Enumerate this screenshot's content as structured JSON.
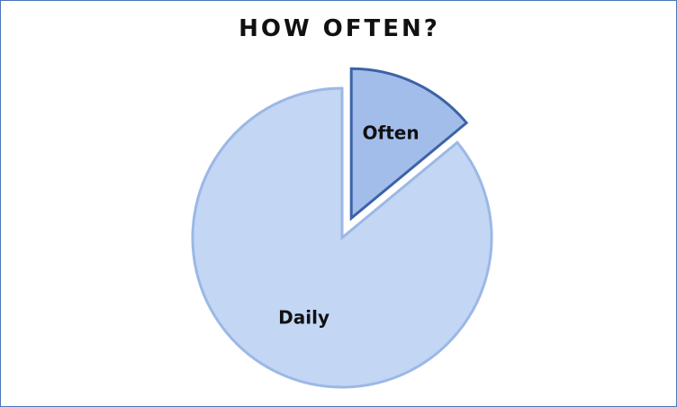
{
  "chart_data": {
    "type": "pie",
    "title": "HOW OFTEN?",
    "slices": [
      {
        "label": "Daily",
        "value": 86,
        "color": "#c3d6f4",
        "stroke": "#9bb8e6"
      },
      {
        "label": "Often",
        "value": 14,
        "color": "#a3bdeb",
        "stroke": "#3d63a6"
      }
    ],
    "exploded": "Often",
    "legend": "none"
  }
}
